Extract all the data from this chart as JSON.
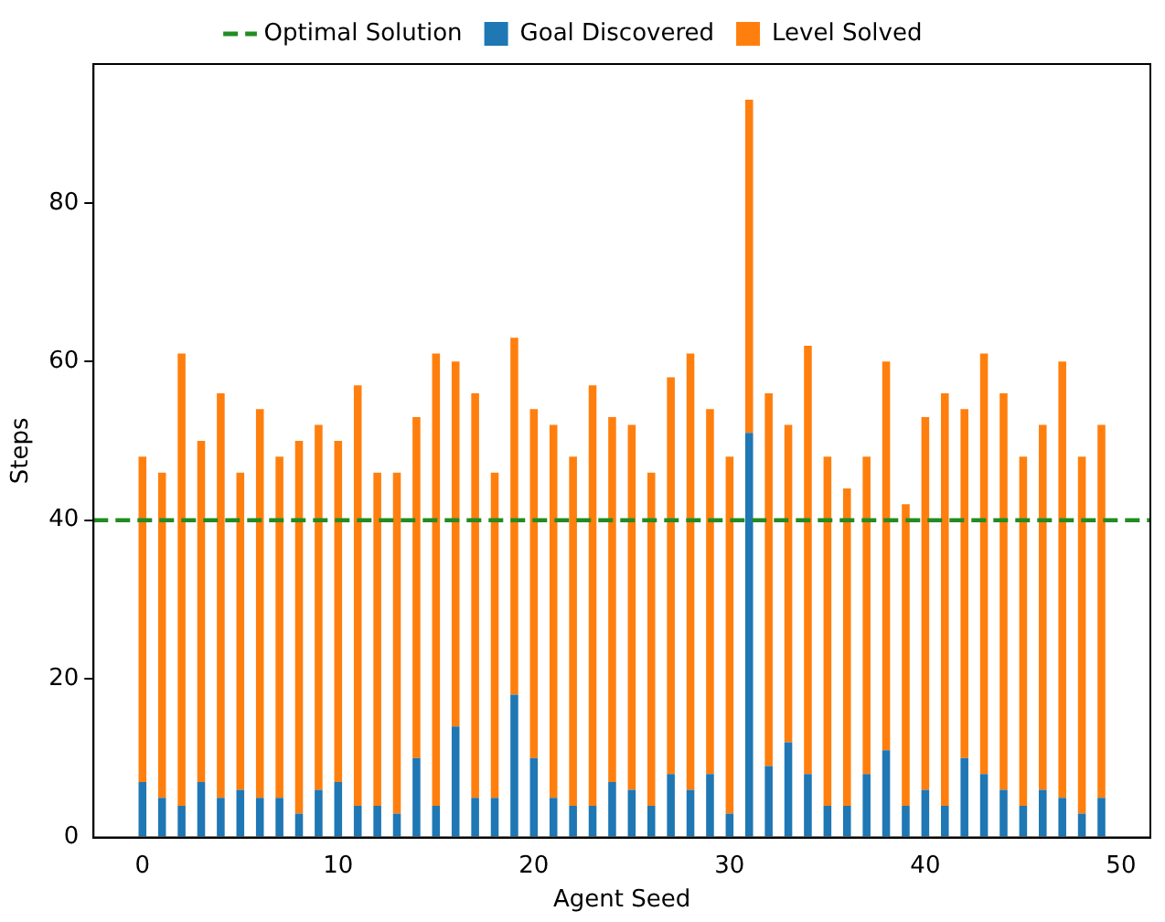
{
  "chart_data": {
    "type": "bar",
    "stacked": true,
    "xlabel": "Agent Seed",
    "ylabel": "Steps",
    "x": [
      0,
      1,
      2,
      3,
      4,
      5,
      6,
      7,
      8,
      9,
      10,
      11,
      12,
      13,
      14,
      15,
      16,
      17,
      18,
      19,
      20,
      21,
      22,
      23,
      24,
      25,
      26,
      27,
      28,
      29,
      30,
      31,
      32,
      33,
      34,
      35,
      36,
      37,
      38,
      39,
      40,
      41,
      42,
      43,
      44,
      45,
      46,
      47,
      48,
      49
    ],
    "series": [
      {
        "name": "Goal Discovered",
        "color": "#1f77b4",
        "values": [
          7,
          5,
          4,
          7,
          5,
          6,
          5,
          5,
          3,
          6,
          7,
          4,
          4,
          3,
          10,
          4,
          14,
          5,
          5,
          18,
          10,
          5,
          4,
          4,
          7,
          6,
          4,
          8,
          6,
          8,
          3,
          51,
          9,
          12,
          8,
          4,
          4,
          8,
          11,
          4,
          6,
          4,
          10,
          8,
          6,
          4,
          6,
          5,
          3,
          5
        ]
      },
      {
        "name": "Level Solved",
        "color": "#ff7f0e",
        "values": [
          41,
          41,
          57,
          43,
          51,
          40,
          49,
          43,
          47,
          46,
          43,
          53,
          42,
          43,
          43,
          57,
          46,
          51,
          41,
          45,
          44,
          47,
          44,
          53,
          46,
          46,
          42,
          50,
          55,
          46,
          45,
          42,
          47,
          40,
          54,
          44,
          40,
          40,
          49,
          38,
          47,
          52,
          44,
          53,
          50,
          44,
          46,
          55,
          45,
          47
        ]
      }
    ],
    "ref_lines": [
      {
        "axis": "y",
        "value": 40,
        "label": "Optimal Solution",
        "color": "#228b22",
        "line_style": "dashed"
      }
    ],
    "xlim": [
      -2.5,
      51.5
    ],
    "xticks": [
      0,
      10,
      20,
      30,
      40,
      50
    ],
    "ylim": [
      0,
      97.5
    ],
    "yticks": [
      0,
      20,
      40,
      60,
      80
    ],
    "grid": false,
    "legend": "top"
  }
}
